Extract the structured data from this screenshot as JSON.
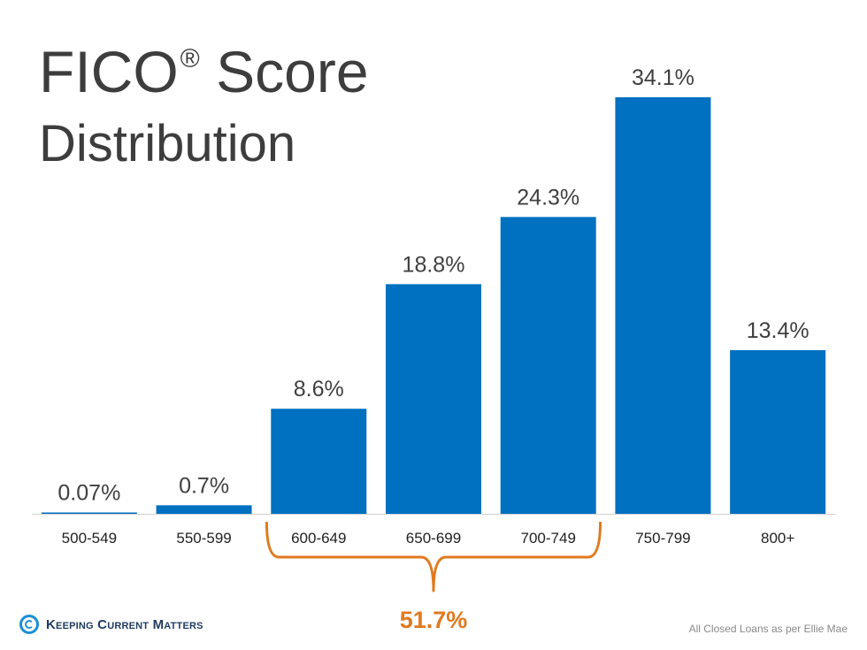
{
  "title": {
    "line1": "FICO",
    "line1_mark": "®",
    "line1_rest": "Score",
    "line2": "Distribution"
  },
  "chart_data": {
    "type": "bar",
    "categories": [
      "500-549",
      "550-599",
      "600-649",
      "650-699",
      "700-749",
      "750-799",
      "800+"
    ],
    "values": [
      0.07,
      0.7,
      8.6,
      18.8,
      24.3,
      34.1,
      13.4
    ],
    "value_labels": [
      "0.07%",
      "0.7%",
      "8.6%",
      "18.8%",
      "24.3%",
      "34.1%",
      "13.4%"
    ],
    "ylim": [
      0,
      34.1
    ],
    "grid": false,
    "bar_color": "#0070c0",
    "annotation": {
      "text": "51.7%",
      "spans_categories": [
        "600-649",
        "650-699",
        "700-749"
      ],
      "color": "#e07a1f"
    }
  },
  "footer": {
    "logo_text": "Keeping Current Matters",
    "source": "All Closed Loans as per Ellie Mae"
  },
  "colors": {
    "title": "#3d3d3d",
    "bar": "#0070c0",
    "accent": "#e07a1f",
    "axis": "#d0d0d0"
  },
  "icons": {
    "logo": "kcm-swirl-icon"
  }
}
